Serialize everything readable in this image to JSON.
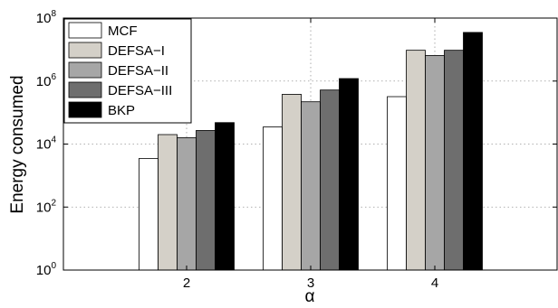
{
  "chart_data": {
    "type": "bar",
    "title": "",
    "xlabel": "α",
    "ylabel": "Energy consumed",
    "y_scale": "log",
    "ylim": [
      1,
      100000000
    ],
    "y_ticks": [
      {
        "value": 1,
        "base": "10",
        "exp": "0"
      },
      {
        "value": 100,
        "base": "10",
        "exp": "2"
      },
      {
        "value": 10000,
        "base": "10",
        "exp": "4"
      },
      {
        "value": 1000000,
        "base": "10",
        "exp": "6"
      },
      {
        "value": 100000000,
        "base": "10",
        "exp": "8"
      }
    ],
    "categories": [
      "2",
      "3",
      "4"
    ],
    "grid": true,
    "legend_position": "top-left",
    "series": [
      {
        "name": "MCF",
        "color": "#ffffff",
        "values": [
          3500,
          35000,
          320000
        ]
      },
      {
        "name": "DEFSA−I",
        "color": "#d4d0c8",
        "values": [
          20000,
          380000,
          9500000
        ]
      },
      {
        "name": "DEFSA−II",
        "color": "#a6a6a6",
        "values": [
          16000,
          220000,
          6500000
        ]
      },
      {
        "name": "DEFSA−III",
        "color": "#6e6e6e",
        "values": [
          27000,
          520000,
          9500000
        ]
      },
      {
        "name": "BKP",
        "color": "#000000",
        "values": [
          48000,
          1200000,
          35000000
        ]
      }
    ]
  }
}
